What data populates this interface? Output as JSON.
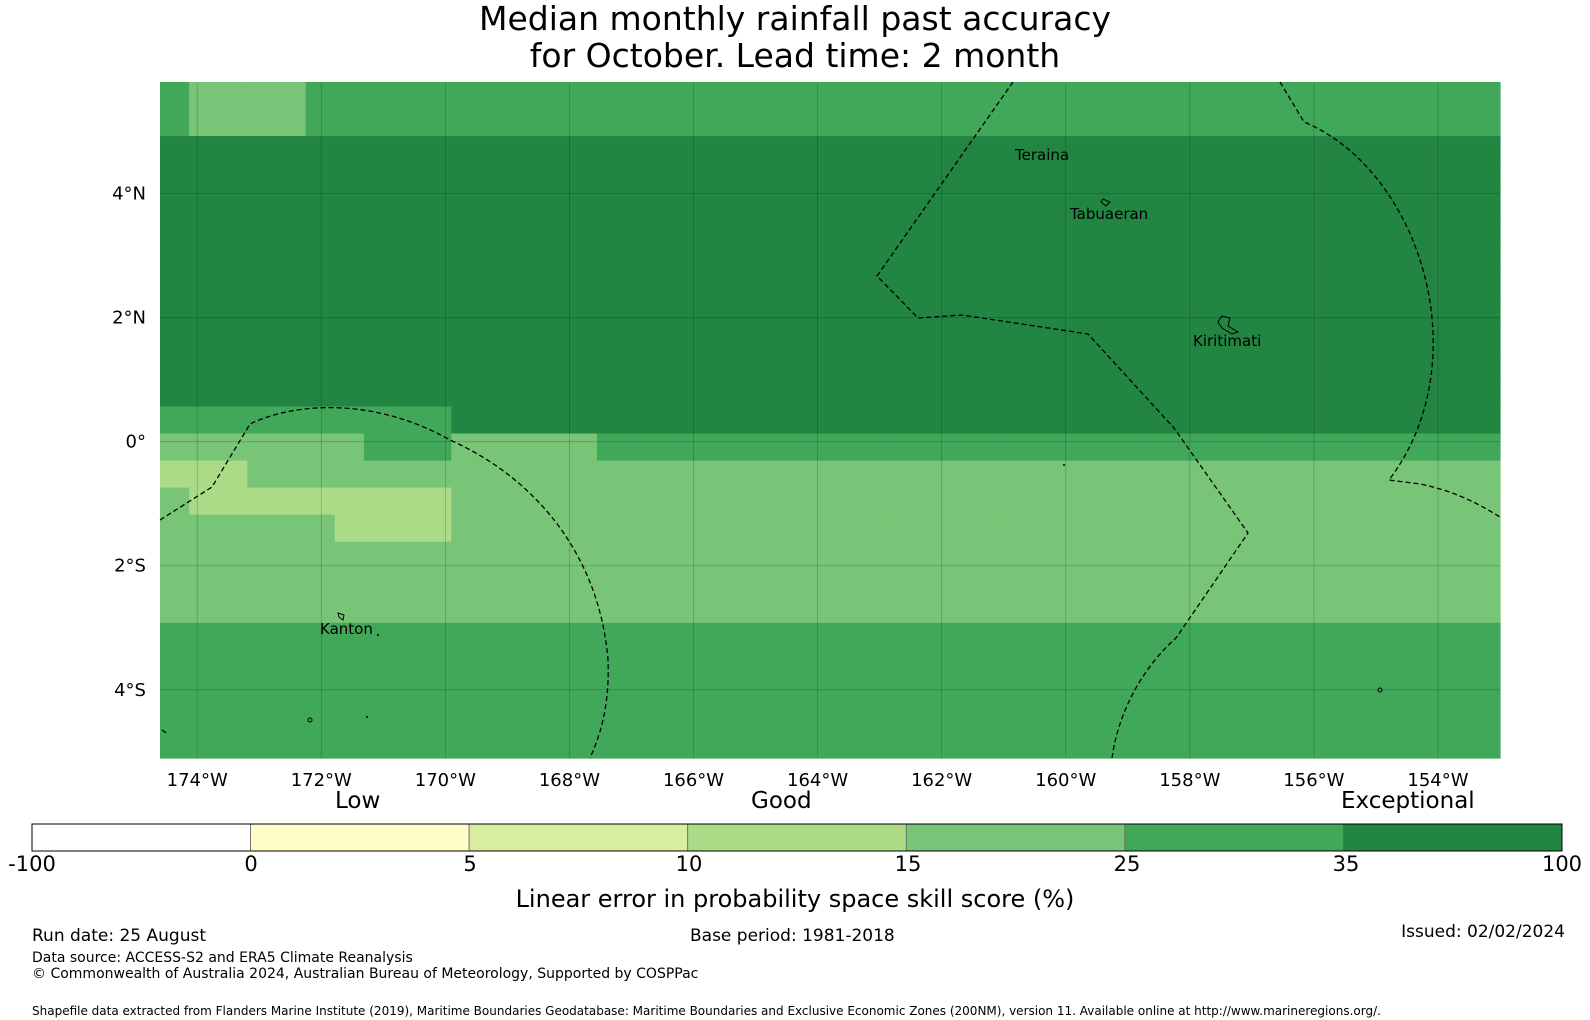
{
  "title": {
    "line1": "Median monthly rainfall past accuracy",
    "line2": "for October. Lead time: 2 month"
  },
  "map": {
    "lon_labels": [
      "174°W",
      "172°W",
      "170°W",
      "168°W",
      "166°W",
      "164°W",
      "162°W",
      "160°W",
      "158°W",
      "156°W",
      "154°W"
    ],
    "lat_labels": [
      "4°N",
      "2°N",
      "0°",
      "2°S",
      "4°S"
    ],
    "place_labels": [
      "Teraina",
      "Tabuaeran",
      "Kiritimati",
      "Kanton"
    ],
    "lon_range": [
      -174.6,
      -153.0
    ],
    "lat_range": [
      -5.1,
      5.8
    ],
    "grid_rows": [
      "3222233333333333333333333333333333333333333333",
      "3222233333333333333333333333333333333333333333",
      "4444444444444444444444444444444444444444444444",
      "4444444444444444444444444444444444444444444444",
      "4444444444444444444444444444444444444444444444",
      "4444444444444444444444444444444444444444444444",
      "4444444444444444444444444444444444444444444444",
      "4444444444444444444444444444444444444444444444",
      "4444444444444444444444444444444444444444444444",
      "4444444444444444444444444444444444444444444444",
      "4444444444444444444444444444444444444444444444",
      "4444444444444444444444444444444444444444444444",
      "3333333333444444444444444444444444444444444444",
      "2222222333222223333333333333333333333333333333",
      "1112222222222222222222222222222222222222222222",
      "2111111111222222222222222222222222222222222222",
      "2222221111222222222222222222222222222222222222",
      "2222222222222222222222222222222222222222222222",
      "2222222222222222222222222222222222222222222222",
      "2222222222222222222222222222222222222222222222",
      "3333333333333333333333333333333333333333333333",
      "3333333333333333333333333333333333333333333333",
      "3333333333333333333333333333333333333333333333",
      "3333333333333333333333333333333333333333333333",
      "3333333333333333333333333333333333333333333333"
    ]
  },
  "colorbar": {
    "category_labels": [
      "Low",
      "Good",
      "Exceptional"
    ],
    "ticks": [
      "-100",
      "0",
      "5",
      "10",
      "15",
      "25",
      "35",
      "100"
    ],
    "colors": [
      "#ffffff",
      "#fefdc8",
      "#d8eda0",
      "#acdb88",
      "#78c577",
      "#41a85a",
      "#228542"
    ],
    "title": "Linear error in probability space skill score (%)"
  },
  "footer": {
    "run_date": "Run date: 25 August",
    "base_period": "Base period: 1981-2018",
    "issued": "Issued: 02/02/2024",
    "data_source": "Data source: ACCESS-S2 and ERA5 Climate Reanalysis",
    "copyright": "© Commonwealth of Australia 2024, Australian Bureau of Meteorology, Supported by COSPPac",
    "shapefile": "Shapefile data extracted from Flanders Marine Institute (2019), Maritime Boundaries Geodatabase: Maritime Boundaries and Exclusive Economic Zones (200NM), version 11. Available online at http://www.marineregions.org/."
  }
}
